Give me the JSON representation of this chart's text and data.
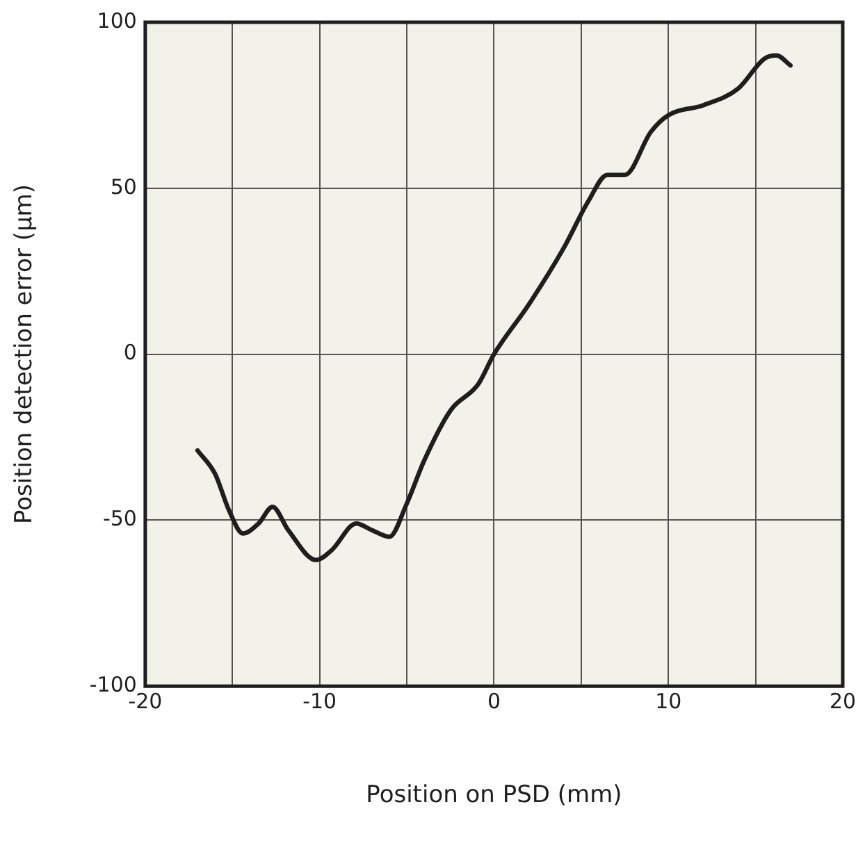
{
  "chart_data": {
    "type": "line",
    "xlabel": "Position on PSD (mm)",
    "ylabel": "Position detection error (µm)",
    "xlim": [
      -20,
      20
    ],
    "xticks": [
      -20,
      {
        "value": -15,
        "label": null
      },
      -10,
      {
        "value": -5,
        "label": null
      },
      0,
      {
        "value": 5,
        "label": null
      },
      10,
      {
        "value": 15,
        "label": null
      },
      20
    ],
    "ylim": [
      -100,
      100
    ],
    "yticks": [
      -100,
      -50,
      0,
      50,
      100
    ],
    "grid": true,
    "legend": false,
    "marker": "none",
    "line_style": "solid",
    "series": [
      {
        "color": "#1e1e1e",
        "x": [
          -17,
          -16,
          -15.2,
          -14.4,
          -13.5,
          -12.7,
          -11.8,
          -10.2,
          -9.3,
          -7.9,
          -7,
          -6,
          -5,
          -4,
          -2.5,
          -0.9,
          0,
          2,
          4,
          5.4,
          6.5,
          7,
          7.5,
          9,
          10,
          12,
          14,
          15.5,
          16.2,
          17
        ],
        "values": [
          -29,
          -36,
          -47,
          -54,
          -51,
          -46,
          -53,
          -62,
          -59,
          -51,
          -53,
          -55,
          -45,
          -32,
          -17,
          -9,
          0,
          15,
          32,
          46,
          54,
          54,
          54,
          67,
          72,
          75,
          80,
          89,
          90,
          87
        ]
      }
    ]
  }
}
